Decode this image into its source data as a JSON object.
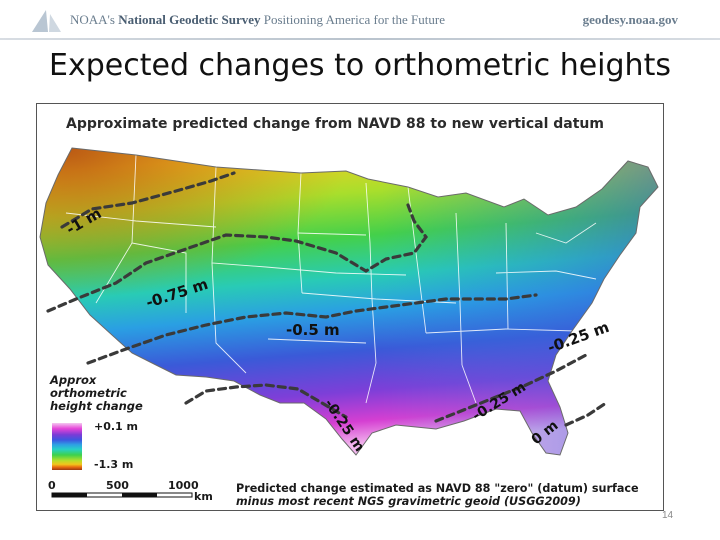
{
  "header": {
    "agency": "NOAA's",
    "survey": "National Geodetic Survey",
    "tagline": "Positioning America for the Future",
    "website": "geodesy.noaa.gov"
  },
  "slide": {
    "title": "Expected changes to orthometric heights",
    "page_number": "14"
  },
  "map": {
    "caption": "Approximate predicted change from NAVD 88 to new vertical datum",
    "contour_labels": [
      "-1 m",
      "-0.75 m",
      "-0.5 m",
      "-0.25 m",
      "-0.25 m",
      "-0.25 m",
      "0 m"
    ],
    "legend": {
      "title_lines": [
        "Approx",
        "orthometric",
        "height change"
      ],
      "max_label": "+0.1 m",
      "min_label": "-1.3 m",
      "colors": [
        "#f4c7f0",
        "#e545d8",
        "#7a3cd6",
        "#3d56e0",
        "#2ea0e4",
        "#27d0c7",
        "#3ed14c",
        "#b5df2a",
        "#f2c61c",
        "#e86a10",
        "#9a3a10"
      ]
    },
    "scale_bar": {
      "ticks": [
        "0",
        "500",
        "1000"
      ],
      "unit": "km"
    },
    "note_lines": [
      "Predicted change estimated as NAVD 88 \"zero\" (datum) surface",
      "minus most recent NGS gravimetric geoid (USGG2009)"
    ]
  }
}
